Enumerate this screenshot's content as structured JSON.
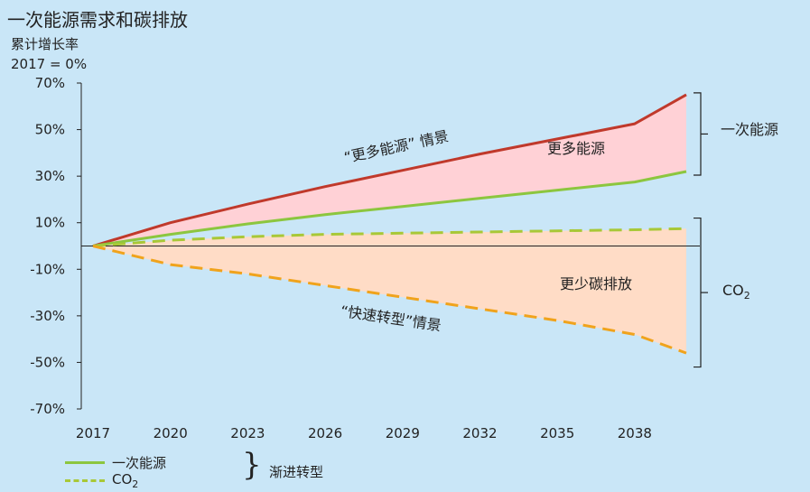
{
  "header": {
    "title": "一次能源需求和碳排放",
    "ylabel_line1": "累计增长率",
    "ylabel_line2": "2017 = 0%"
  },
  "chart_data": {
    "type": "line",
    "x_ticks": [
      "2017",
      "2020",
      "2023",
      "2026",
      "2029",
      "2032",
      "2035",
      "2038"
    ],
    "y_ticks": [
      "70%",
      "50%",
      "30%",
      "10%",
      "-10%",
      "-30%",
      "-50%",
      "-70%"
    ],
    "ylim": [
      -70,
      70
    ],
    "xlim": [
      2017,
      2040
    ],
    "series": [
      {
        "key": "ever_energy",
        "x": [
          2017,
          2020,
          2023,
          2026,
          2029,
          2032,
          2035,
          2038,
          2040
        ],
        "y": [
          0,
          10,
          18,
          25.5,
          32.5,
          39.5,
          46,
          52.5,
          65
        ],
        "color": "#c0392b",
        "style": "solid"
      },
      {
        "key": "et_energy",
        "x": [
          2017,
          2020,
          2023,
          2026,
          2029,
          2032,
          2035,
          2038,
          2040
        ],
        "y": [
          0,
          5,
          9.5,
          13.5,
          17,
          20.5,
          24,
          27.5,
          32
        ],
        "color": "#8cc63f",
        "style": "solid"
      },
      {
        "key": "et_co2",
        "x": [
          2017,
          2020,
          2023,
          2026,
          2029,
          2032,
          2035,
          2038,
          2040
        ],
        "y": [
          0,
          2.5,
          4,
          5,
          5.5,
          6,
          6.5,
          7,
          7.5
        ],
        "color": "#a8c837",
        "style": "dashed"
      },
      {
        "key": "rt_co2",
        "x": [
          2017,
          2020,
          2023,
          2026,
          2029,
          2032,
          2035,
          2038,
          2040
        ],
        "y": [
          0,
          -8,
          -12,
          -17,
          -22,
          -27,
          -32,
          -38,
          -46
        ],
        "color": "#f0a31c",
        "style": "dashed"
      }
    ],
    "annotations": {
      "ever_scenario": "“更多能源” 情景",
      "rapid_scenario": "“快速转型”情景",
      "more_energy": "更多能源",
      "less_carbon": "更少碳排放",
      "right_energy": "一次能源",
      "right_co2_main": "CO",
      "right_co2_sub": "2"
    },
    "colors": {
      "more_energy_fill": "#ffd1d6",
      "less_carbon_fill": "#ffdcc6",
      "background": "#c9e6f7"
    }
  },
  "legend": {
    "energy": "一次能源",
    "co2_main": "CO",
    "co2_sub": "2",
    "group": "渐进转型"
  }
}
